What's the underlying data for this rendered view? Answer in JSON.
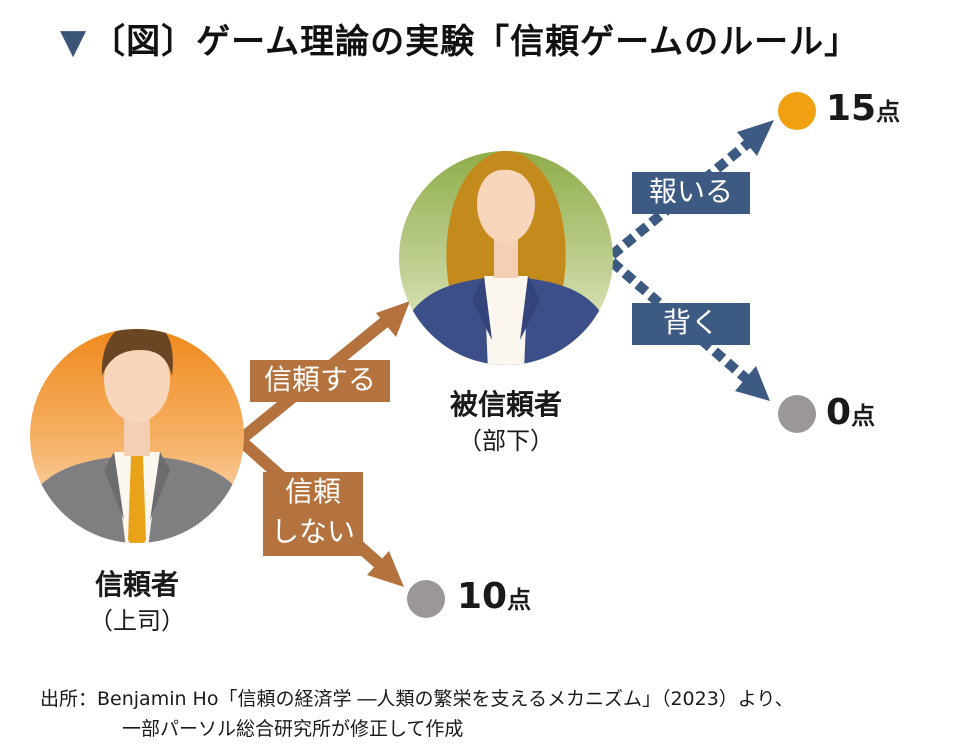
{
  "title": {
    "marker": "▼",
    "text": "〔図〕ゲーム理論の実験「信頼ゲームのルール」"
  },
  "truster": {
    "role": "信頼者",
    "sub": "（上司）"
  },
  "trustee": {
    "role": "被信頼者",
    "sub": "（部下）"
  },
  "actions": {
    "trust": "信頼する",
    "not_trust_line1": "信頼",
    "not_trust_line2": "しない",
    "repay": "報いる",
    "betray": "背く"
  },
  "outcomes": {
    "repay": {
      "value": "15",
      "unit": "点"
    },
    "betray": {
      "value": "0",
      "unit": "点"
    },
    "not_trust": {
      "value": "10",
      "unit": "点"
    }
  },
  "source": {
    "line1": "出所：Benjamin Ho「信頼の経済学 ―人類の繁栄を支えるメカニズム」（2023）より、",
    "line2": "一部パーソル総合研究所が修正して作成"
  },
  "colors": {
    "brown": "#b4723e",
    "blue": "#3d5a82",
    "orange_dot": "#f0a010",
    "gray_dot": "#9a9699"
  }
}
